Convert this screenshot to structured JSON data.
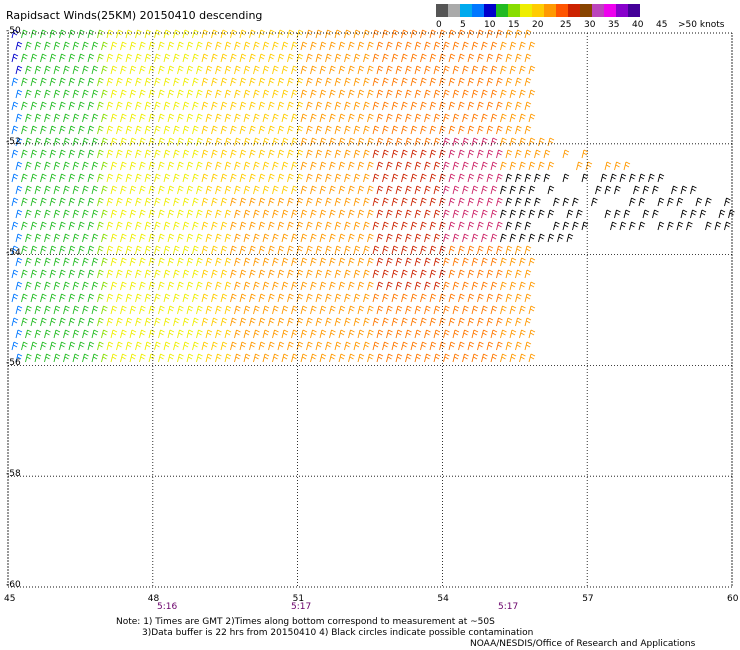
{
  "title": "Rapidsact Winds(25KM) 20150410 descending",
  "legend": {
    "colors": [
      "#555555",
      "#aaaaaa",
      "#00aaee",
      "#0077ff",
      "#0000cc",
      "#22bb22",
      "#88dd00",
      "#eeee00",
      "#ffcc00",
      "#ff9900",
      "#ff5500",
      "#cc2200",
      "#884400",
      "#bb44bb",
      "#ee00ee",
      "#8800cc",
      "#440099"
    ],
    "labels": [
      "0",
      "5",
      "10",
      "15",
      "20",
      "25",
      "30",
      "35",
      "40",
      "45",
      ">50 knots"
    ]
  },
  "map": {
    "lon_range": [
      45,
      60
    ],
    "lat_range": [
      -60,
      -50
    ],
    "lat_labels": [
      "-50",
      "-52",
      "-54",
      "-56",
      "-58",
      "-60"
    ],
    "lon_labels": [
      "45",
      "48",
      "51",
      "54",
      "57",
      "60"
    ],
    "time_labels": [
      "5:16",
      "5:17",
      "5:17"
    ]
  },
  "notes": {
    "line1": "Note: 1) Times are GMT 2)Times along bottom correspond to measurement at ~50S",
    "line2": "3)Data buffer is 22 hrs from 20150410 4) Black circles indicate possible contamination",
    "line3": "NOAA/NESDIS/Office of Research and Applications"
  }
}
